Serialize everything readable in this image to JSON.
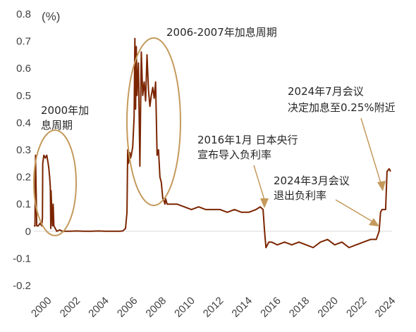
{
  "chart_data": {
    "type": "line",
    "unit_label": "(%)",
    "ylim": [
      -0.2,
      0.8
    ],
    "xlim": [
      2000,
      2025
    ],
    "y_ticks": [
      "0.8",
      "0.7",
      "0.6",
      "0.5",
      "0.4",
      "0.3",
      "0.2",
      "0.1",
      "0",
      "-0.1",
      "-0.2"
    ],
    "x_ticks": [
      "2000",
      "2002",
      "2004",
      "2006",
      "2008",
      "2010",
      "2012",
      "2014",
      "2016",
      "2018",
      "2020",
      "2022",
      "2024"
    ],
    "colors": {
      "line": "#7B2500",
      "annotation": "#C49A5C"
    },
    "series": [
      {
        "x": [
          2000.0,
          2000.08,
          2000.12,
          2000.2,
          2000.3,
          2000.45,
          2000.55,
          2000.6,
          2000.62,
          2000.7,
          2000.8,
          2000.9,
          2001.0,
          2001.05,
          2001.1,
          2001.15,
          2001.18,
          2001.2,
          2001.25,
          2001.3,
          2001.35,
          2001.4,
          2001.5,
          2001.6,
          2001.8,
          2002.0,
          2002.5,
          2003.0,
          2003.5,
          2004.0,
          2004.5,
          2005.0,
          2005.5,
          2006.0,
          2006.2,
          2006.4,
          2006.5,
          2006.55,
          2006.6,
          2006.7,
          2006.75,
          2006.8,
          2006.9,
          2007.0,
          2007.05,
          2007.1,
          2007.15,
          2007.2,
          2007.3,
          2007.4,
          2007.5,
          2007.6,
          2007.7,
          2007.8,
          2007.9,
          2008.0,
          2008.1,
          2008.2,
          2008.3,
          2008.4,
          2008.5,
          2008.6,
          2008.7,
          2008.8,
          2008.9,
          2009.0,
          2009.1,
          2009.15,
          2009.2,
          2009.3,
          2009.5,
          2010.0,
          2010.5,
          2011.0,
          2011.5,
          2012.0,
          2012.5,
          2013.0,
          2013.5,
          2014.0,
          2014.5,
          2015.0,
          2015.5,
          2015.8,
          2016.0,
          2016.1,
          2016.2,
          2016.4,
          2016.6,
          2017.0,
          2017.5,
          2018.0,
          2018.5,
          2019.0,
          2019.5,
          2020.0,
          2020.5,
          2021.0,
          2021.5,
          2022.0,
          2022.5,
          2023.0,
          2023.5,
          2023.9,
          2024.1,
          2024.2,
          2024.3,
          2024.5,
          2024.55,
          2024.6,
          2024.65,
          2024.8,
          2024.9
        ],
        "values": [
          0.02,
          0.02,
          0.28,
          0.02,
          0.02,
          0.03,
          0.02,
          0.05,
          0.25,
          0.28,
          0.27,
          0.28,
          0.25,
          0.23,
          0.2,
          0.16,
          0.01,
          0.15,
          0.08,
          0.02,
          0.1,
          0.02,
          0.01,
          0.0,
          0.005,
          0.0,
          0.0,
          0.001,
          0.0,
          0.0,
          0.001,
          0.0,
          0.0,
          0.0,
          0.001,
          0.01,
          0.07,
          0.3,
          0.25,
          0.29,
          0.27,
          0.28,
          0.31,
          0.42,
          0.71,
          0.45,
          0.68,
          0.5,
          0.62,
          0.24,
          0.66,
          0.5,
          0.55,
          0.48,
          0.65,
          0.52,
          0.46,
          0.5,
          0.53,
          0.49,
          0.55,
          0.28,
          0.3,
          0.2,
          0.18,
          0.12,
          0.11,
          0.1,
          0.12,
          0.1,
          0.1,
          0.1,
          0.09,
          0.08,
          0.09,
          0.08,
          0.08,
          0.08,
          0.07,
          0.08,
          0.07,
          0.07,
          0.08,
          0.09,
          0.08,
          0.0,
          -0.06,
          -0.04,
          -0.04,
          -0.05,
          -0.04,
          -0.05,
          -0.04,
          -0.05,
          -0.06,
          -0.04,
          -0.03,
          -0.05,
          -0.04,
          -0.06,
          -0.05,
          -0.04,
          -0.03,
          -0.03,
          0.0,
          0.07,
          0.08,
          0.08,
          0.08,
          0.15,
          0.22,
          0.23,
          0.22
        ]
      }
    ],
    "annotations": [
      {
        "id": "2000",
        "lines": [
          "2000年加",
          "息周期"
        ]
      },
      {
        "id": "2006",
        "lines": [
          "2006-2007年加息周期"
        ]
      },
      {
        "id": "2016",
        "lines": [
          "2016年1月 日本央行",
          "宣布导入负利率"
        ]
      },
      {
        "id": "2024-03",
        "lines": [
          "2024年3月会议",
          "退出负利率"
        ]
      },
      {
        "id": "2024-07",
        "lines": [
          "2024年7月会议",
          "决定加息至0.25%附近"
        ]
      }
    ]
  }
}
